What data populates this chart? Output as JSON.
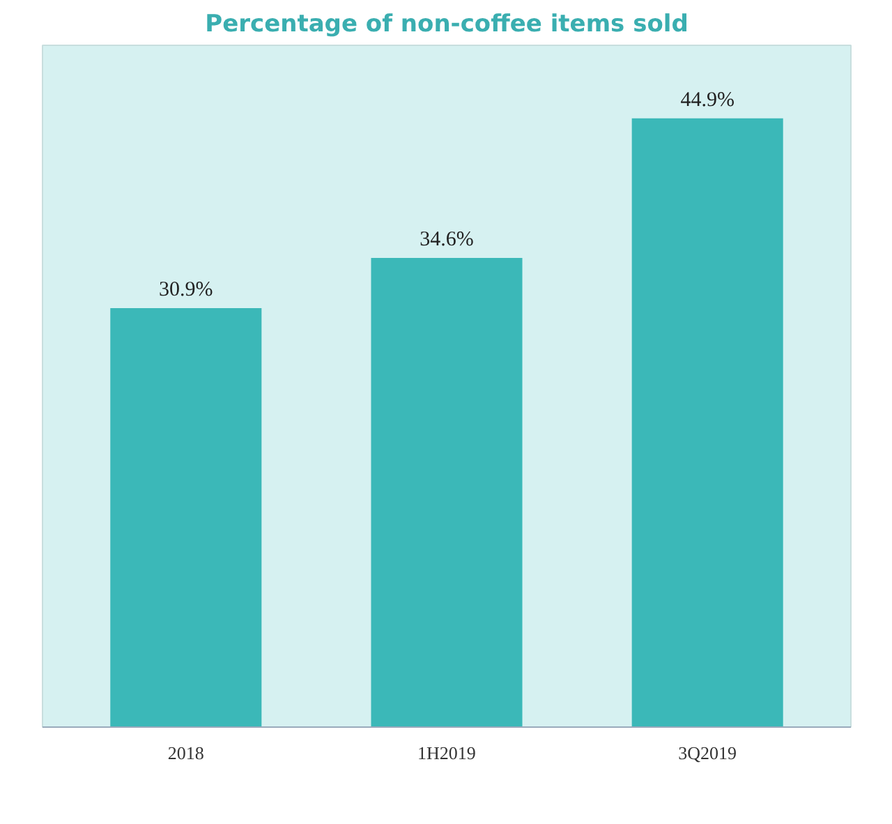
{
  "chart_data": {
    "type": "bar",
    "title": "Percentage of non-coffee items sold",
    "categories": [
      "2018",
      "1H2019",
      "3Q2019"
    ],
    "values": [
      30.9,
      34.6,
      44.9
    ],
    "value_labels": [
      "30.9%",
      "34.6%",
      "44.9%"
    ],
    "color": "#3bb8b8"
  }
}
